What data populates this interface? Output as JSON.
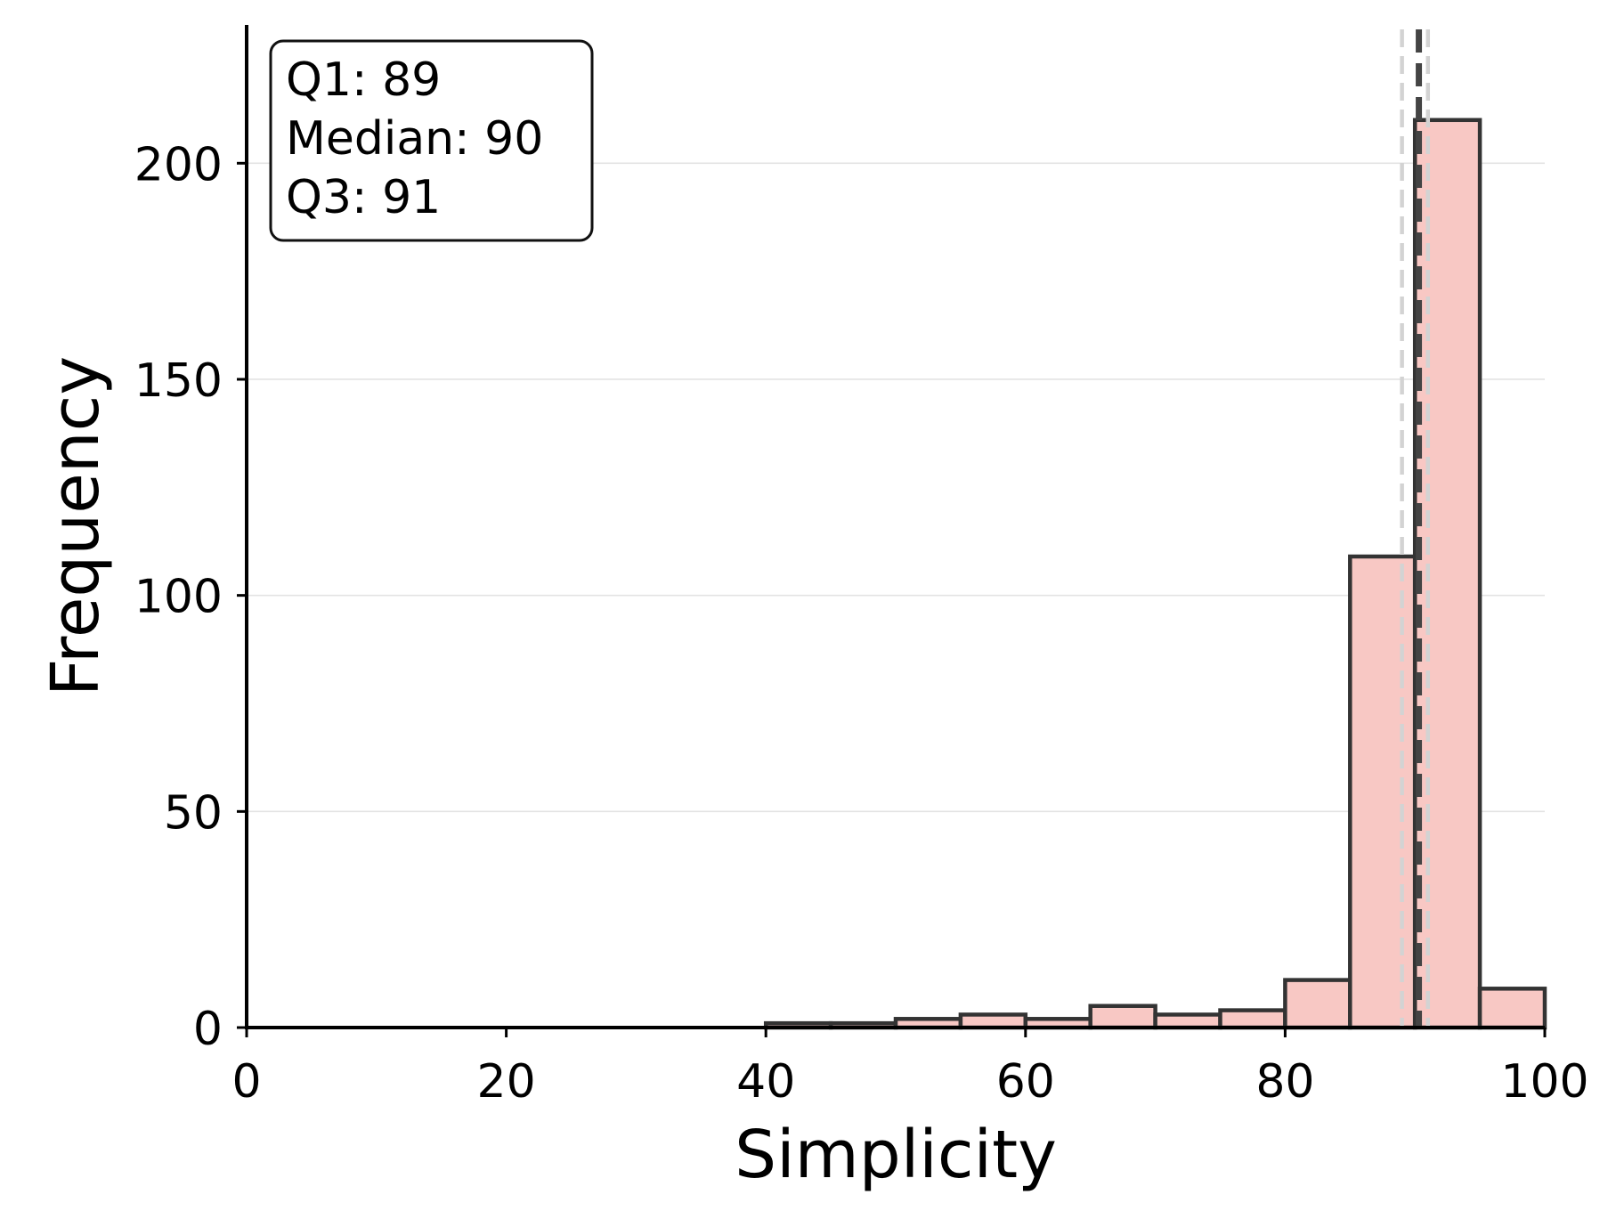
{
  "chart_data": {
    "type": "bar",
    "subtype": "histogram",
    "xlabel": "Simplicity",
    "ylabel": "Frequency",
    "xlim": [
      0,
      100
    ],
    "ylim": [
      0,
      232
    ],
    "xticks": [
      0,
      20,
      40,
      60,
      80,
      100
    ],
    "yticks": [
      0,
      50,
      100,
      150,
      200
    ],
    "grid": "horizontal",
    "bar_color": "#f8c8c4",
    "edge_color": "#333333",
    "bins": [
      {
        "x0": 40,
        "x1": 45,
        "count": 1
      },
      {
        "x0": 45,
        "x1": 50,
        "count": 1
      },
      {
        "x0": 50,
        "x1": 55,
        "count": 2
      },
      {
        "x0": 55,
        "x1": 60,
        "count": 3
      },
      {
        "x0": 60,
        "x1": 65,
        "count": 2
      },
      {
        "x0": 65,
        "x1": 70,
        "count": 5
      },
      {
        "x0": 70,
        "x1": 75,
        "count": 3
      },
      {
        "x0": 75,
        "x1": 80,
        "count": 4
      },
      {
        "x0": 80,
        "x1": 85,
        "count": 11
      },
      {
        "x0": 85,
        "x1": 90,
        "count": 109
      },
      {
        "x0": 90,
        "x1": 95,
        "count": 210
      },
      {
        "x0": 95,
        "x1": 100,
        "count": 9
      }
    ],
    "reference_lines": [
      {
        "name": "Q1",
        "x": 89,
        "color": "#d3d3d3"
      },
      {
        "name": "Median",
        "x": 90.3,
        "color": "#444444"
      },
      {
        "name": "Q3",
        "x": 91,
        "color": "#d3d3d3"
      }
    ],
    "stats_box": {
      "position": "top-left",
      "lines": [
        "Q1: 89",
        "Median: 90",
        "Q3: 91"
      ]
    }
  }
}
